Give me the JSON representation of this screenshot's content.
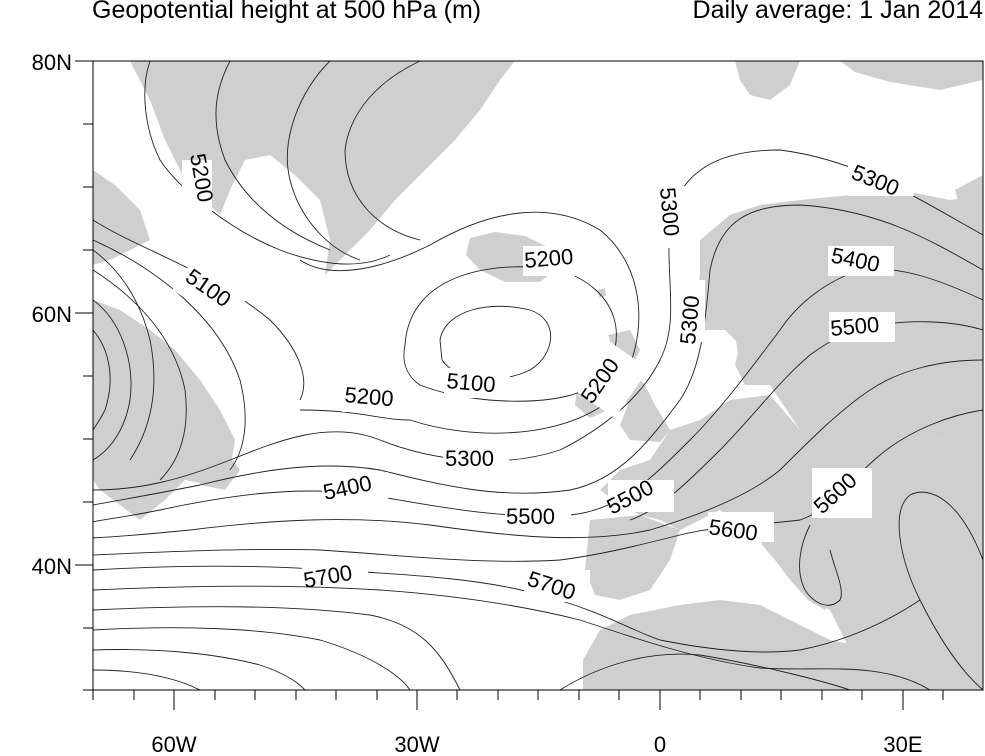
{
  "title_left": "Geopotential height at 500 hPa (m)",
  "title_right": "Daily average: 1 Jan 2014",
  "axes": {
    "lat_labels": [
      "80N",
      "60N",
      "40N"
    ],
    "lon_labels": [
      "60W",
      "30W",
      "0",
      "30E"
    ]
  },
  "contour_labels": [
    {
      "text": "5200"
    },
    {
      "text": "5100"
    },
    {
      "text": "5200"
    },
    {
      "text": "5100"
    },
    {
      "text": "5200"
    },
    {
      "text": "5200"
    },
    {
      "text": "5300"
    },
    {
      "text": "5300"
    },
    {
      "text": "5300"
    },
    {
      "text": "5400"
    },
    {
      "text": "5500"
    },
    {
      "text": "5300"
    },
    {
      "text": "5400"
    },
    {
      "text": "5500"
    },
    {
      "text": "5500"
    },
    {
      "text": "5600"
    },
    {
      "text": "5600"
    },
    {
      "text": "5700"
    },
    {
      "text": "5700"
    }
  ],
  "colors": {
    "land": "#cfcfcf",
    "contour": "#222222",
    "background": "#ffffff"
  }
}
